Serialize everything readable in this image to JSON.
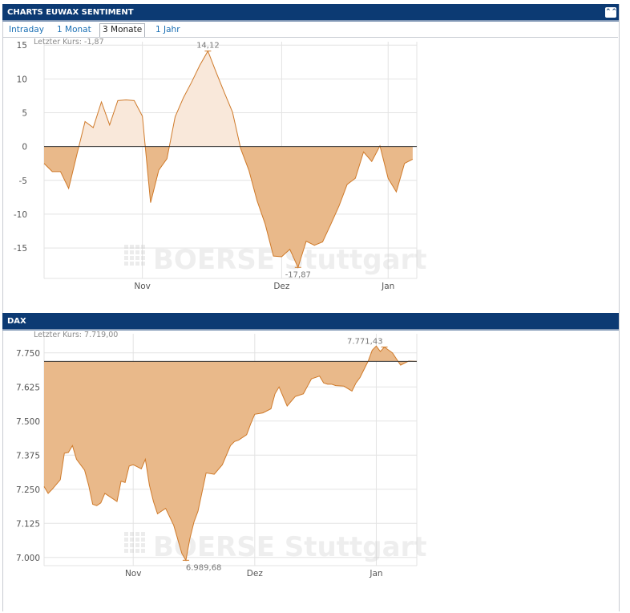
{
  "panel1": {
    "title": "CHARTS EUWAX SENTIMENT",
    "collapse_icon": "double-chevron-up-icon"
  },
  "tabs": [
    {
      "label": "Intraday",
      "active": false
    },
    {
      "label": "1 Monat",
      "active": false
    },
    {
      "label": "3 Monate",
      "active": true
    },
    {
      "label": "1 Jahr",
      "active": false
    }
  ],
  "panel2": {
    "title": "DAX"
  },
  "watermark": "BOERSE Stuttgart",
  "colors": {
    "fill": "#e9b98a",
    "fill_light": "#f9e8da",
    "line": "#cf7a2a",
    "header": "#0c3a73"
  },
  "chart_data": [
    {
      "type": "area",
      "name": "EUWAX Sentiment",
      "last_label": "Letzter Kurs: -1,87",
      "x_ticks": [
        {
          "label": "Nov",
          "x": 12
        },
        {
          "label": "Dez",
          "x": 29
        },
        {
          "label": "Jan",
          "x": 42
        }
      ],
      "y_ticks": [
        15,
        10,
        5,
        0,
        -5,
        -10,
        -15
      ],
      "y_tick_labels": [
        "15",
        "10",
        "5",
        "0",
        "-5",
        "-10",
        "-15"
      ],
      "ylim": [
        -19.5,
        15.5
      ],
      "xlim": [
        0,
        45.5
      ],
      "baseline": 0,
      "x": [
        0,
        1,
        2,
        3,
        4,
        5,
        6,
        7,
        8,
        9,
        10,
        11,
        12,
        13,
        14,
        15,
        16,
        17,
        18,
        19,
        20,
        21,
        22,
        23,
        24,
        25,
        26,
        27,
        28,
        29,
        30,
        31,
        32,
        33,
        34,
        35,
        36,
        37,
        38,
        39,
        40,
        41,
        42,
        43,
        44,
        45
      ],
      "values": [
        -2.5,
        -3.7,
        -3.7,
        -6.2,
        -1.2,
        3.7,
        2.8,
        6.6,
        3.2,
        6.8,
        6.9,
        6.8,
        4.5,
        -8.3,
        -3.5,
        -1.8,
        4.4,
        7.2,
        9.5,
        12.0,
        14.12,
        11.0,
        8.0,
        5.1,
        -0.3,
        -3.5,
        -8.0,
        -11.5,
        -16.2,
        -16.3,
        -15.2,
        -17.87,
        -14.0,
        -14.6,
        -14.1,
        -11.5,
        -8.8,
        -5.6,
        -4.7,
        -0.8,
        -2.2,
        0.1,
        -4.7,
        -6.7,
        -2.5,
        -1.87
      ],
      "annotations": [
        {
          "label": "14,12",
          "x": 20,
          "y": 14.12,
          "pos": "above"
        },
        {
          "label": "-17,87",
          "x": 31,
          "y": -17.87,
          "pos": "below"
        }
      ]
    },
    {
      "type": "area",
      "name": "DAX",
      "last_label": "Letzter Kurs: 7.719,00",
      "x_ticks": [
        {
          "label": "Nov",
          "x": 11
        },
        {
          "label": "Dez",
          "x": 26
        },
        {
          "label": "Jan",
          "x": 41
        }
      ],
      "y_ticks": [
        7750,
        7625,
        7500,
        7375,
        7250,
        7125,
        7000
      ],
      "y_tick_labels": [
        "7.750",
        "7.625",
        "7.500",
        "7.375",
        "7.250",
        "7.125",
        "7.000"
      ],
      "ylim": [
        6970,
        7820
      ],
      "xlim": [
        0,
        46
      ],
      "baseline": 7719.0,
      "x": [
        0,
        0.5,
        1,
        2,
        2.5,
        3,
        3.5,
        4,
        5,
        5.5,
        6,
        6.5,
        7,
        7.5,
        8,
        9,
        9.5,
        10,
        10.5,
        11,
        12,
        12.5,
        13,
        13.5,
        14,
        15,
        16,
        17,
        17.5,
        18,
        18.5,
        19,
        20,
        21,
        22,
        23,
        23.5,
        24,
        25,
        25.5,
        26,
        27,
        28,
        28.5,
        29,
        30,
        31,
        31.5,
        32,
        33,
        34,
        34.5,
        35,
        35.5,
        36,
        37,
        38,
        38.5,
        39,
        40,
        40.5,
        41,
        41.5,
        42,
        43,
        44,
        45,
        46
      ],
      "values": [
        7260,
        7235,
        7250,
        7285,
        7382,
        7385,
        7410,
        7360,
        7320,
        7265,
        7195,
        7190,
        7200,
        7235,
        7225,
        7205,
        7280,
        7275,
        7335,
        7340,
        7325,
        7360,
        7265,
        7205,
        7160,
        7180,
        7118,
        7015,
        6989.68,
        7070,
        7130,
        7170,
        7310,
        7305,
        7340,
        7410,
        7425,
        7430,
        7450,
        7490,
        7525,
        7530,
        7545,
        7600,
        7625,
        7555,
        7590,
        7595,
        7600,
        7655,
        7665,
        7640,
        7635,
        7635,
        7630,
        7628,
        7610,
        7640,
        7660,
        7720,
        7760,
        7775,
        7755,
        7771.43,
        7750,
        7705,
        7720,
        7719
      ],
      "annotations": [
        {
          "label": "7.771,43",
          "x": 42,
          "y": 7771.43,
          "pos": "above-left"
        },
        {
          "label": "6.989,68",
          "x": 17.5,
          "y": 6989.68,
          "pos": "below-right"
        }
      ]
    }
  ]
}
